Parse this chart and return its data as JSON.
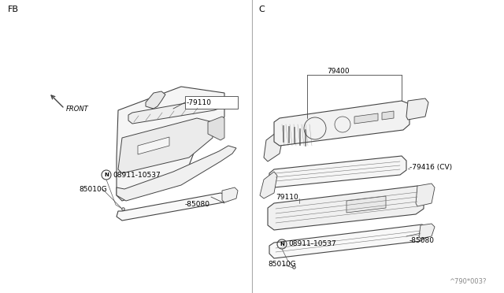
{
  "bg_color": "#ffffff",
  "line_color": "#444444",
  "text_color": "#000000",
  "divider_color": "#aaaaaa",
  "left_label": "FB",
  "right_label": "C",
  "watermark": "^790*003?",
  "fs_small": 6.5,
  "fs_label": 6.5,
  "fs_section": 8
}
